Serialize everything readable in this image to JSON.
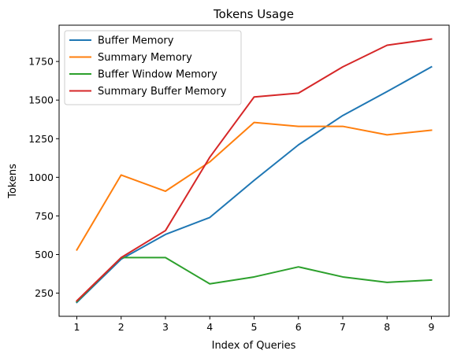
{
  "chart_data": {
    "type": "line",
    "title": "Tokens Usage",
    "xlabel": "Index of Queries",
    "ylabel": "Tokens",
    "x": [
      1,
      2,
      3,
      4,
      5,
      6,
      7,
      8,
      9
    ],
    "xlim": [
      0.6,
      9.4
    ],
    "ylim": [
      100,
      1985
    ],
    "xticks": [
      1,
      2,
      3,
      4,
      5,
      6,
      7,
      8,
      9
    ],
    "yticks": [
      250,
      500,
      750,
      1000,
      1250,
      1500,
      1750
    ],
    "grid": false,
    "legend_position": "top-left",
    "series": [
      {
        "name": "Buffer Memory",
        "color": "#1f77b4",
        "values": [
          190,
          470,
          630,
          740,
          980,
          1210,
          1400,
          1555,
          1715
        ]
      },
      {
        "name": "Summary Memory",
        "color": "#ff7f0e",
        "values": [
          530,
          1015,
          910,
          1100,
          1355,
          1330,
          1330,
          1275,
          1305
        ]
      },
      {
        "name": "Buffer Window Memory",
        "color": "#2ca02c",
        "values": [
          195,
          480,
          480,
          310,
          355,
          420,
          355,
          320,
          335
        ]
      },
      {
        "name": "Summary Buffer Memory",
        "color": "#d62728",
        "values": [
          200,
          480,
          655,
          1130,
          1520,
          1545,
          1715,
          1855,
          1895
        ]
      }
    ]
  }
}
